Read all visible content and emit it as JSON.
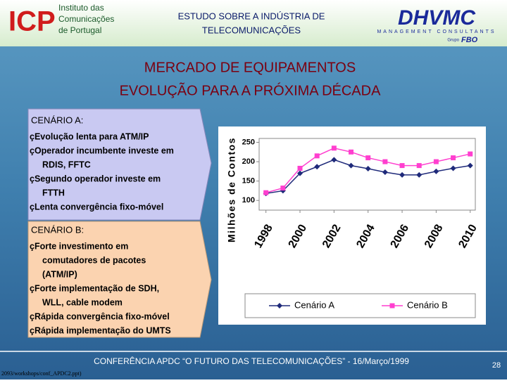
{
  "header": {
    "logo_left": {
      "mark": "ICP",
      "text": [
        "Instituto das",
        "Comunicações",
        "de Portugal"
      ]
    },
    "title": [
      "ESTUDO SOBRE A INDÚSTRIA DE",
      "TELECOMUNICAÇÕES"
    ],
    "logo_right": {
      "mark": "DHVMC",
      "subtitle": "MANAGEMENT CONSULTANTS",
      "group": "Grupo",
      "group_mark": "FBO"
    }
  },
  "title": [
    "MERCADO DE EQUIPAMENTOS",
    "EVOLUÇÃO PARA A PRÓXIMA DÉCADA"
  ],
  "scenarios": [
    {
      "heading": "CENÁRIO A:",
      "items": [
        [
          "çEvolução lenta para ATM/IP"
        ],
        [
          "çOperador incumbente investe em",
          "RDIS, FFTC"
        ],
        [
          "çSegundo operador investe em",
          "FTTH"
        ],
        [
          "çLenta convergência fixo-móvel"
        ]
      ]
    },
    {
      "heading": "CENÁRIO B:",
      "items": [
        [
          "çForte investimento em",
          "comutadores de pacotes",
          "(ATM/IP)"
        ],
        [
          "çForte implementação de SDH,",
          "WLL, cable modem"
        ],
        [
          "çRápida convergência fixo-móvel"
        ],
        [
          "çRápida implementação do UMTS"
        ]
      ]
    }
  ],
  "chart_data": {
    "type": "line",
    "y_label": "Milhões de Contos",
    "x": [
      1998,
      1999,
      2000,
      2001,
      2002,
      2003,
      2004,
      2005,
      2006,
      2007,
      2008,
      2009,
      2010
    ],
    "series": [
      {
        "name": "Cenário A",
        "color": "#1f2a7a",
        "marker": "diamond",
        "values": [
          118,
          125,
          170,
          187,
          205,
          190,
          182,
          173,
          166,
          166,
          175,
          183,
          190
        ]
      },
      {
        "name": "Cenário B",
        "color": "#ff3fcf",
        "marker": "square",
        "values": [
          120,
          132,
          183,
          215,
          235,
          225,
          210,
          200,
          190,
          190,
          200,
          210,
          220
        ]
      }
    ],
    "xlim": [
      1997.6,
      2010.3
    ],
    "xticks": [
      1998,
      2000,
      2002,
      2004,
      2006,
      2008,
      2010
    ],
    "ylim": [
      75,
      260
    ],
    "yticks": [
      100,
      150,
      200,
      250
    ],
    "legend": "bottom"
  },
  "footer": {
    "text": "CONFERÊNCIA APDC “O FUTURO DAS TELECOMUNICAÇÕES” - 16/Março/1999",
    "page": 28,
    "file": "2093/workshops/conf_APDC2.ppt)"
  }
}
